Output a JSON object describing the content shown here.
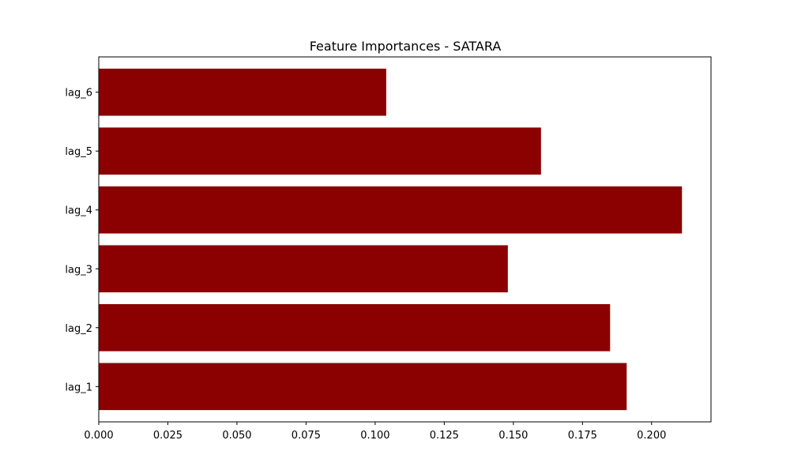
{
  "chart_data": {
    "type": "bar",
    "orientation": "horizontal",
    "title": "Feature Importances - SATARA",
    "xlabel": "",
    "ylabel": "",
    "categories": [
      "lag_1",
      "lag_2",
      "lag_3",
      "lag_4",
      "lag_5",
      "lag_6"
    ],
    "values": [
      0.191,
      0.185,
      0.148,
      0.211,
      0.16,
      0.104
    ],
    "xlim": [
      0.0,
      0.2215
    ],
    "x_ticks": [
      "0.000",
      "0.025",
      "0.050",
      "0.075",
      "0.100",
      "0.125",
      "0.150",
      "0.175",
      "0.200"
    ],
    "bar_color": "#8b0000",
    "grid": false
  }
}
